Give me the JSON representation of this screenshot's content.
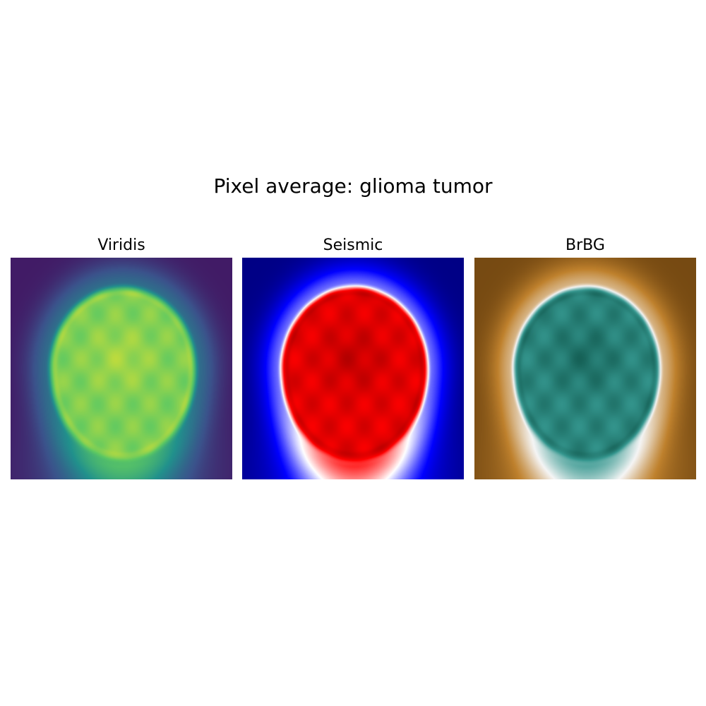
{
  "figure": {
    "title": "Pixel average: glioma tumor"
  },
  "chart_data": [
    {
      "type": "heatmap",
      "title": "Viridis",
      "colormap": "viridis",
      "colormap_stops": [
        "#440154",
        "#3b528b",
        "#21918c",
        "#5ec962",
        "#fde725"
      ],
      "content": "average brain MRI intensity image",
      "axes_visible": false
    },
    {
      "type": "heatmap",
      "title": "Seismic",
      "colormap": "seismic",
      "colormap_stops": [
        "#00004c",
        "#0000ff",
        "#ffffff",
        "#ff0000",
        "#7f0000"
      ],
      "content": "average brain MRI intensity image",
      "axes_visible": false
    },
    {
      "type": "heatmap",
      "title": "BrBG",
      "colormap": "BrBG",
      "colormap_stops": [
        "#543005",
        "#bf812d",
        "#f5f5f5",
        "#35978f",
        "#003c30"
      ],
      "content": "average brain MRI intensity image",
      "axes_visible": false
    }
  ]
}
